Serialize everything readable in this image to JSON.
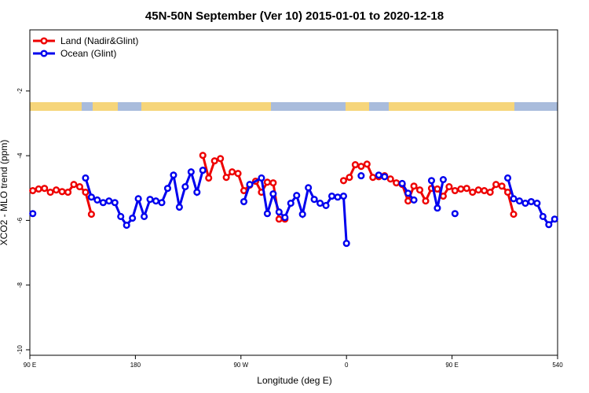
{
  "chart_data": {
    "type": "line",
    "title": "45N-50N September (Ver 10)   2015-01-01 to 2020-12-18",
    "xlabel": "Longitude (deg E)",
    "ylabel": "XCO2 - MLO trend (ppm)",
    "xlim": [
      90,
      540
    ],
    "ylim": [
      -10.17,
      -0.11
    ],
    "xticks": [
      {
        "value": 90,
        "label": "90 E"
      },
      180,
      {
        "value": 270,
        "label": "90 W"
      },
      {
        "value": 360,
        "label": "0"
      },
      {
        "value": 450,
        "label": "90 E"
      },
      540
    ],
    "yticks": [
      -2,
      -4,
      -6,
      -8,
      -10
    ],
    "legend": "upper left",
    "series": [
      {
        "name": "Land (Nadir&Glint)",
        "color": "#ee0000",
        "x": [
          92.5,
          97.5,
          102.5,
          107.5,
          112.5,
          117.5,
          122.5,
          127.5,
          132.5,
          137.5,
          142.5,
          147.5,
          237.5,
          242.5,
          247.5,
          252.5,
          257.5,
          262.5,
          267.5,
          272.5,
          277.5,
          282.5,
          287.5,
          292.5,
          297.5,
          302.5,
          307.5,
          312.5,
          357.5,
          362.5,
          367.5,
          372.5,
          377.5,
          382.5,
          387.5,
          392.5,
          397.5,
          402.5,
          407.5,
          412.5,
          417.5,
          422.5,
          427.5,
          432.5,
          437.5,
          442.5,
          447.5,
          452.5,
          457.5,
          462.5,
          467.5,
          472.5,
          477.5,
          482.5,
          487.5,
          492.5,
          497.5,
          502.5
        ],
        "values": [
          -5.08,
          -5.03,
          -5.01,
          -5.13,
          -5.06,
          -5.11,
          -5.13,
          -4.89,
          -4.96,
          -5.13,
          -5.81,
          null,
          -3.99,
          -4.69,
          -4.16,
          -4.09,
          -4.67,
          -4.5,
          -4.55,
          -5.08,
          -4.91,
          -4.79,
          -5.13,
          -4.82,
          -4.84,
          -5.96,
          -5.96,
          null,
          -4.77,
          -4.67,
          -4.28,
          -4.33,
          -4.26,
          -4.67,
          -4.65,
          -4.62,
          -4.72,
          -4.84,
          -4.89,
          -5.4,
          -4.94,
          -5.06,
          -5.4,
          -5.01,
          -5.03,
          -5.25,
          -4.96,
          -5.08,
          -5.03,
          -5.01,
          -5.13,
          -5.06,
          -5.08,
          -5.13,
          -4.89,
          -4.94,
          -5.13,
          -5.81
        ]
      },
      {
        "name": "Ocean (Glint)",
        "color": "#0000ee",
        "x": [
          92.5,
          97.5,
          137.5,
          142.5,
          147.5,
          152.5,
          157.5,
          162.5,
          167.5,
          172.5,
          177.5,
          182.5,
          187.5,
          192.5,
          197.5,
          202.5,
          207.5,
          212.5,
          217.5,
          222.5,
          227.5,
          232.5,
          237.5,
          242.5,
          272.5,
          277.5,
          287.5,
          292.5,
          297.5,
          302.5,
          307.5,
          312.5,
          317.5,
          322.5,
          327.5,
          332.5,
          337.5,
          342.5,
          347.5,
          352.5,
          357.5,
          360,
          365,
          372.5,
          377.5,
          387.5,
          392.5,
          397.5,
          407.5,
          412.5,
          417.5,
          422.5,
          432.5,
          437.5,
          442.5,
          447.5,
          452.5,
          457.5,
          497.5,
          502.5,
          507.5,
          512.5,
          517.5,
          522.5,
          527.5,
          532.5,
          537.5
        ],
        "values": [
          -5.79,
          null,
          -4.69,
          -5.28,
          -5.37,
          -5.45,
          -5.4,
          -5.45,
          -5.88,
          -6.15,
          -5.93,
          -5.33,
          -5.88,
          -5.35,
          -5.4,
          -5.45,
          -5.01,
          -4.6,
          -5.59,
          -4.96,
          -4.5,
          -5.13,
          -4.45,
          null,
          -5.42,
          -4.89,
          -4.69,
          -5.79,
          -5.18,
          -5.74,
          -5.91,
          -5.47,
          -5.23,
          -5.81,
          -4.99,
          -5.35,
          -5.47,
          -5.54,
          -5.25,
          -5.28,
          -5.25,
          -6.71,
          null,
          -4.62,
          null,
          -4.6,
          -4.65,
          null,
          -4.86,
          -5.16,
          -5.37,
          null,
          -4.77,
          -5.62,
          -4.74,
          null,
          -5.79,
          null,
          -4.69,
          -5.33,
          -5.4,
          -5.47,
          -5.42,
          -5.47,
          -5.88,
          -6.13,
          -5.96
        ]
      }
    ]
  }
}
